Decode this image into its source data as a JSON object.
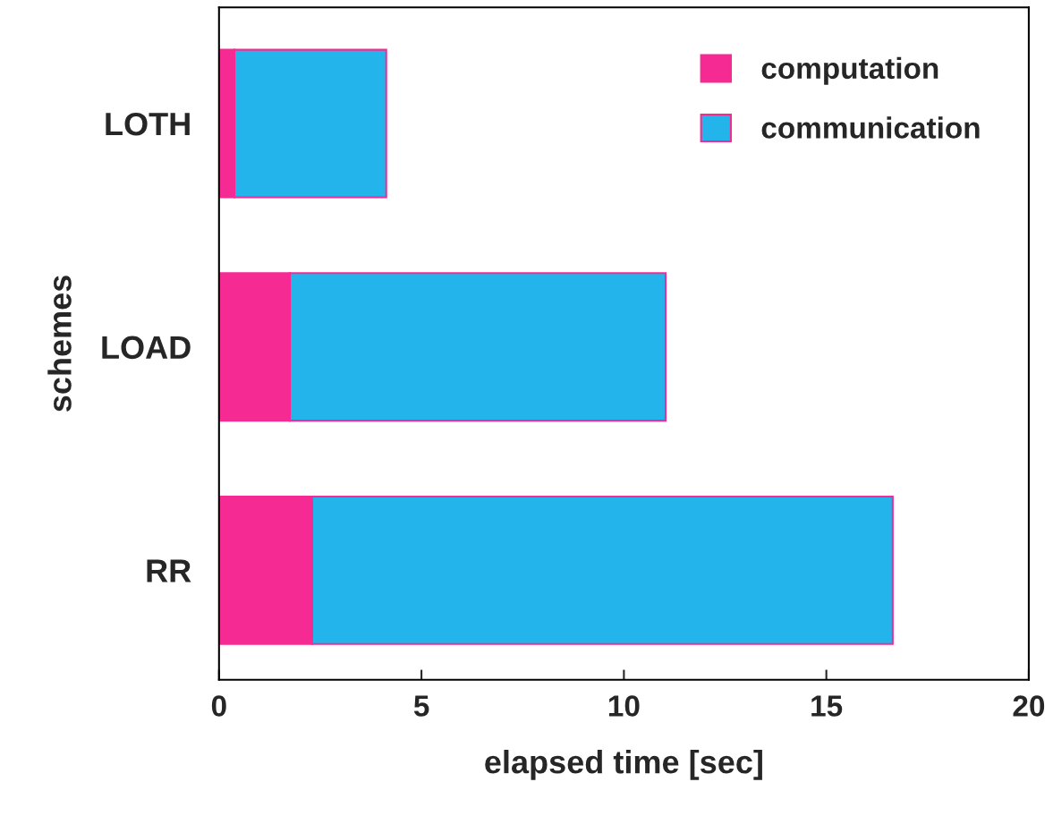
{
  "chart_data": {
    "type": "bar",
    "orientation": "horizontal",
    "stacked": true,
    "categories": [
      "LOTH",
      "LOAD",
      "RR"
    ],
    "series": [
      {
        "name": "computation",
        "color": "#f62a93",
        "values": [
          0.38,
          1.75,
          2.3
        ]
      },
      {
        "name": "communication",
        "color": "#22b4ea",
        "values": [
          3.75,
          9.28,
          14.34
        ]
      }
    ],
    "xlabel": "elapsed time [sec]",
    "ylabel": "schemes",
    "xlim": [
      0,
      20
    ],
    "xticks": [
      0,
      5,
      10,
      15,
      20
    ],
    "grid": false,
    "legend": "top right"
  }
}
